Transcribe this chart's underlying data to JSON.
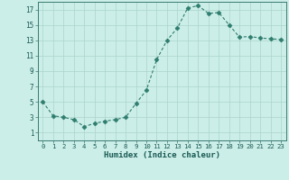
{
  "x": [
    0,
    1,
    2,
    3,
    4,
    5,
    6,
    7,
    8,
    9,
    10,
    11,
    12,
    13,
    14,
    15,
    16,
    17,
    18,
    19,
    20,
    21,
    22,
    23
  ],
  "y": [
    5.0,
    3.2,
    3.0,
    2.7,
    1.8,
    2.2,
    2.5,
    2.7,
    3.0,
    4.8,
    6.5,
    10.5,
    13.0,
    14.6,
    17.2,
    17.5,
    16.5,
    16.6,
    15.0,
    13.4,
    13.5,
    13.3,
    13.2,
    13.1
  ],
  "line_color": "#2e7d6e",
  "marker": "D",
  "marker_size": 2.5,
  "bg_color": "#cceee8",
  "grid_color": "#aad4cc",
  "xlabel": "Humidex (Indice chaleur)",
  "xlim": [
    -0.5,
    23.5
  ],
  "ylim": [
    0,
    18
  ],
  "yticks": [
    1,
    3,
    5,
    7,
    9,
    11,
    13,
    15,
    17
  ],
  "xticks": [
    0,
    1,
    2,
    3,
    4,
    5,
    6,
    7,
    8,
    9,
    10,
    11,
    12,
    13,
    14,
    15,
    16,
    17,
    18,
    19,
    20,
    21,
    22,
    23
  ],
  "xtick_labels": [
    "0",
    "1",
    "2",
    "3",
    "4",
    "5",
    "6",
    "7",
    "8",
    "9",
    "10",
    "11",
    "12",
    "13",
    "14",
    "15",
    "16",
    "17",
    "18",
    "19",
    "20",
    "21",
    "22",
    "23"
  ]
}
